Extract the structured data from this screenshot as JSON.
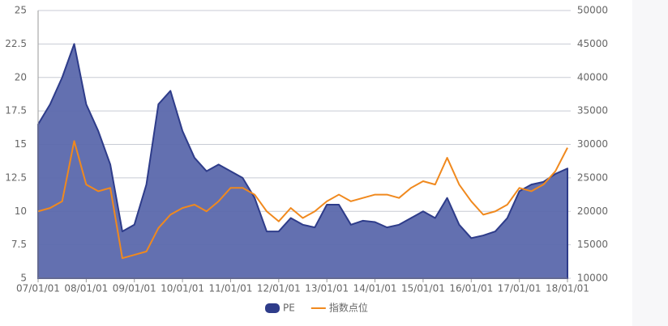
{
  "chart_data": {
    "type": "area",
    "categories": [
      "07/01/01",
      null,
      null,
      null,
      "08/01/01",
      null,
      null,
      null,
      "09/01/01",
      null,
      null,
      null,
      "10/01/01",
      null,
      null,
      null,
      "11/01/01",
      null,
      null,
      null,
      "12/01/01",
      null,
      null,
      null,
      "13/01/01",
      null,
      null,
      null,
      "14/01/01",
      null,
      null,
      null,
      "15/01/01",
      null,
      null,
      null,
      "16/01/01",
      null,
      null,
      null,
      "17/01/01",
      null,
      null,
      null,
      "18/01/01"
    ],
    "series": [
      {
        "name": "PE",
        "type": "area",
        "color": "#5b68ac",
        "values": [
          16.5,
          18,
          20,
          22.5,
          18,
          16,
          13.5,
          8.5,
          9,
          12,
          18,
          19,
          16,
          14,
          13,
          13.5,
          13,
          12.5,
          11,
          8.5,
          8.5,
          9.5,
          9,
          8.8,
          10.5,
          10.5,
          9,
          9.3,
          9.2,
          8.8,
          9,
          9.5,
          10,
          9.5,
          11,
          9,
          8,
          8.2,
          8.5,
          9.5,
          11.5,
          12,
          12.2,
          12.8,
          13.2
        ]
      },
      {
        "name": "指数点位",
        "type": "line",
        "axis": "y2",
        "color": "#f0891e",
        "values": [
          20000,
          20500,
          21500,
          30500,
          24000,
          23000,
          23500,
          13000,
          13500,
          14000,
          17500,
          19500,
          20500,
          21000,
          20000,
          21500,
          23500,
          23500,
          22500,
          20000,
          18500,
          20500,
          19000,
          20000,
          21500,
          22500,
          21500,
          22000,
          22500,
          22500,
          22000,
          23500,
          24500,
          24000,
          28000,
          24000,
          21500,
          19500,
          20000,
          21000,
          23500,
          23000,
          24000,
          26000,
          29500
        ]
      }
    ],
    "ylim": [
      5,
      25
    ],
    "yticks": [
      5,
      7.5,
      10,
      12.5,
      15,
      17.5,
      20,
      22.5,
      25
    ],
    "y2lim": [
      10000,
      50000
    ],
    "y2ticks": [
      10000,
      15000,
      20000,
      25000,
      30000,
      35000,
      40000,
      45000,
      50000
    ],
    "grid": true,
    "legend": "bottom"
  }
}
